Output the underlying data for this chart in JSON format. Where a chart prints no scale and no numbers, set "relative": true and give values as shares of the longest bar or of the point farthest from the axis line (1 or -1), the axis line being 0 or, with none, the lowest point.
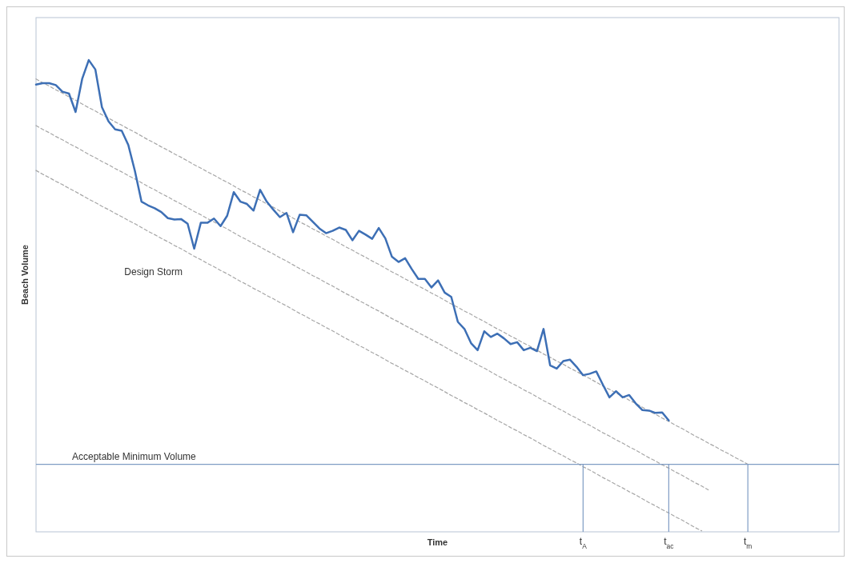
{
  "chart_data": {
    "type": "line",
    "relative": true,
    "xlabel": "Time",
    "ylabel": "Beach Volume",
    "annotations": [
      "Design Storm"
    ],
    "categories": [
      null,
      null,
      null,
      null,
      null,
      null,
      null,
      null,
      null,
      null,
      null,
      null,
      null,
      null,
      null,
      null,
      null,
      null,
      null,
      null,
      null,
      null,
      null,
      null,
      null,
      null,
      null,
      null,
      null,
      null,
      null,
      null,
      null,
      null,
      null,
      null,
      null,
      null,
      null,
      null,
      null,
      null,
      null,
      null,
      null,
      null,
      null,
      null,
      null,
      null,
      null,
      null,
      null,
      null,
      null,
      null,
      null,
      null,
      null,
      null,
      null,
      null,
      null,
      null,
      null,
      null,
      null,
      null,
      null,
      null,
      null,
      null,
      null,
      null,
      null,
      null,
      null,
      null,
      null,
      null,
      null,
      null,
      null,
      "t$_{A}$",
      null,
      null,
      null,
      null,
      null,
      null,
      null,
      null,
      null,
      null,
      null,
      null,
      "t$_{ac}$",
      null,
      null,
      null,
      null,
      null,
      null,
      null,
      null,
      null,
      null,
      null,
      "t$_{m}$",
      null,
      null,
      null,
      null,
      null,
      null,
      null,
      null,
      null,
      null,
      null,
      null
    ],
    "ref_lines": [
      {
        "axis": "y",
        "value": 0.143,
        "label": "Acceptable Minimum Volume",
        "color": "#7f9cc4"
      },
      {
        "axis": "x",
        "value": "t$_{A}$",
        "color": "#7f9cc4"
      },
      {
        "axis": "x",
        "value": "t$_{ac}$",
        "color": "#7f9cc4"
      },
      {
        "axis": "x",
        "value": "t$_{m}$",
        "color": "#7f9cc4"
      }
    ],
    "series": [
      {
        "color": "#a6a6a6",
        "line_style": "dashed",
        "values": [
          0.96,
          0.952,
          0.945,
          0.937,
          0.93,
          0.922,
          0.915,
          0.907,
          0.899,
          0.892,
          0.884,
          0.877,
          0.869,
          0.862,
          0.854,
          0.847,
          0.839,
          0.831,
          0.824,
          0.816,
          0.809,
          0.801,
          0.794,
          0.786,
          0.778,
          0.771,
          0.763,
          0.756,
          0.748,
          0.741,
          0.733,
          0.725,
          0.718,
          0.71,
          0.703,
          0.695,
          0.688,
          0.68,
          0.673,
          0.665,
          0.657,
          0.65,
          0.642,
          0.635,
          0.627,
          0.62,
          0.612,
          0.604,
          0.597,
          0.589,
          0.582,
          0.574,
          0.567,
          0.559,
          0.551,
          0.544,
          0.536,
          0.529,
          0.521,
          0.514,
          0.506,
          0.499,
          0.491,
          0.483,
          0.476,
          0.468,
          0.461,
          0.453,
          0.446,
          0.438,
          0.43,
          0.423,
          0.415,
          0.408,
          0.4,
          0.393,
          0.385,
          0.377,
          0.37,
          0.362,
          0.355,
          0.347,
          0.34,
          0.332,
          0.325,
          0.317,
          0.309,
          0.302,
          0.294,
          0.287,
          0.279,
          0.272,
          0.264,
          0.256,
          0.249,
          0.241,
          0.234,
          0.226,
          0.219,
          0.211,
          0.203,
          0.196,
          0.188,
          0.181,
          0.173,
          0.166,
          0.158,
          0.151,
          0.143,
          null,
          null,
          null,
          null,
          null,
          null,
          null,
          null,
          null,
          null,
          null,
          null
        ]
      },
      {
        "color": "#a6a6a6",
        "line_style": "dashed",
        "values": [
          0.861,
          0.853,
          0.846,
          0.838,
          0.831,
          0.823,
          0.816,
          0.808,
          0.8,
          0.793,
          0.785,
          0.778,
          0.77,
          0.763,
          0.755,
          0.748,
          0.74,
          0.732,
          0.725,
          0.717,
          0.71,
          0.702,
          0.695,
          0.687,
          0.679,
          0.672,
          0.664,
          0.657,
          0.649,
          0.642,
          0.634,
          0.626,
          0.619,
          0.611,
          0.604,
          0.596,
          0.589,
          0.581,
          0.574,
          0.566,
          0.558,
          0.551,
          0.543,
          0.536,
          0.528,
          0.521,
          0.513,
          0.505,
          0.498,
          0.49,
          0.483,
          0.475,
          0.468,
          0.46,
          0.452,
          0.445,
          0.437,
          0.43,
          0.422,
          0.415,
          0.407,
          0.4,
          0.392,
          0.384,
          0.377,
          0.369,
          0.362,
          0.354,
          0.347,
          0.339,
          0.331,
          0.324,
          0.316,
          0.309,
          0.301,
          0.294,
          0.286,
          0.278,
          0.271,
          0.263,
          0.256,
          0.248,
          0.241,
          0.233,
          0.226,
          0.218,
          0.21,
          0.203,
          0.195,
          0.188,
          0.18,
          0.173,
          0.165,
          0.157,
          0.15,
          0.142,
          0.135,
          0.127,
          0.12,
          0.112,
          0.104,
          0.097,
          0.089,
          null,
          null,
          null,
          null,
          null,
          null,
          null,
          null,
          null,
          null,
          null,
          null,
          null,
          null,
          null,
          null,
          null,
          null
        ]
      },
      {
        "color": "#a6a6a6",
        "line_style": "dashed",
        "values": [
          0.766,
          0.758,
          0.751,
          0.743,
          0.736,
          0.728,
          0.721,
          0.713,
          0.705,
          0.698,
          0.69,
          0.683,
          0.675,
          0.668,
          0.66,
          0.653,
          0.645,
          0.637,
          0.63,
          0.622,
          0.615,
          0.607,
          0.6,
          0.592,
          0.584,
          0.577,
          0.569,
          0.562,
          0.554,
          0.547,
          0.539,
          0.531,
          0.524,
          0.516,
          0.509,
          0.501,
          0.494,
          0.486,
          0.479,
          0.471,
          0.463,
          0.456,
          0.448,
          0.441,
          0.433,
          0.426,
          0.418,
          0.41,
          0.403,
          0.395,
          0.388,
          0.38,
          0.373,
          0.365,
          0.357,
          0.35,
          0.342,
          0.335,
          0.327,
          0.32,
          0.312,
          0.305,
          0.297,
          0.289,
          0.282,
          0.274,
          0.267,
          0.259,
          0.252,
          0.244,
          0.236,
          0.229,
          0.221,
          0.214,
          0.206,
          0.199,
          0.191,
          0.183,
          0.176,
          0.168,
          0.161,
          0.153,
          0.146,
          0.138,
          0.131,
          0.123,
          0.115,
          0.108,
          0.1,
          0.093,
          0.085,
          0.078,
          0.07,
          0.062,
          0.055,
          0.047,
          0.04,
          0.032,
          0.025,
          0.017,
          0.009,
          0.002,
          null,
          null,
          null,
          null,
          null,
          null,
          null,
          null,
          null,
          null,
          null,
          null,
          null,
          null,
          null,
          null,
          null,
          null,
          null
        ]
      },
      {
        "color": "#3d6fb5",
        "line_style": "solid",
        "values": [
          0.948,
          0.951,
          0.951,
          0.947,
          0.933,
          0.929,
          0.89,
          0.96,
          1,
          0.98,
          0.9,
          0.87,
          0.853,
          0.85,
          0.82,
          0.765,
          0.7,
          0.692,
          0.686,
          0.678,
          0.665,
          0.662,
          0.663,
          0.653,
          0.6,
          0.655,
          0.655,
          0.664,
          0.648,
          0.67,
          0.72,
          0.7,
          0.695,
          0.681,
          0.725,
          0.7,
          0.683,
          0.667,
          0.676,
          0.635,
          0.672,
          0.671,
          0.657,
          0.643,
          0.633,
          0.638,
          0.645,
          0.64,
          0.618,
          0.638,
          0.63,
          0.621,
          0.644,
          0.622,
          0.583,
          0.572,
          0.58,
          0.557,
          0.536,
          0.536,
          0.518,
          0.533,
          0.507,
          0.498,
          0.445,
          0.43,
          0.4,
          0.385,
          0.425,
          0.413,
          0.42,
          0.41,
          0.398,
          0.402,
          0.385,
          0.39,
          0.383,
          0.43,
          0.353,
          0.346,
          0.362,
          0.365,
          0.35,
          0.332,
          0.335,
          0.34,
          0.312,
          0.285,
          0.298,
          0.285,
          0.29,
          0.272,
          0.258,
          0.257,
          0.252,
          0.253,
          0.236,
          null,
          null,
          null,
          null,
          null,
          null,
          null,
          null,
          null,
          null,
          null,
          null,
          null,
          null,
          null,
          null,
          null,
          null,
          null,
          null,
          null,
          null,
          null,
          null
        ]
      }
    ]
  }
}
